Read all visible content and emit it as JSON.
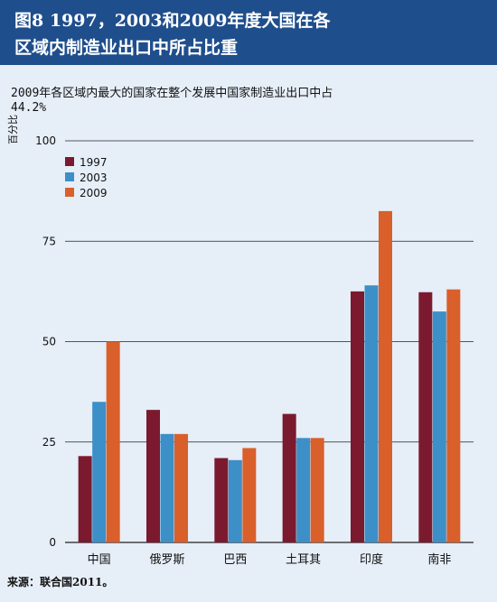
{
  "figure": {
    "title_line1": "图8  1997，2003和2009年度大国在各",
    "title_line2": "区域内制造业出口中所占比重",
    "subtitle_line1": "2009年各区域内最大的国家在整个发展中国家制造业出口中占",
    "subtitle_line2": "44.2%",
    "source": "来源：联合国2011。"
  },
  "chart_data": {
    "type": "bar",
    "ylabel": "百分比",
    "ylim": [
      0,
      100
    ],
    "yticks": [
      0,
      25,
      50,
      75,
      100
    ],
    "grid": true,
    "legend_position": "top-left",
    "categories": [
      "中国",
      "俄罗斯",
      "巴西",
      "土耳其",
      "印度",
      "南非"
    ],
    "series": [
      {
        "name": "1997",
        "color": "#7b1a2e",
        "values": [
          21.5,
          33,
          21,
          32,
          62.5,
          62.3
        ]
      },
      {
        "name": "2003",
        "color": "#3d8fc7",
        "values": [
          35,
          27,
          20.5,
          26,
          64,
          57.5
        ]
      },
      {
        "name": "2009",
        "color": "#d95f2b",
        "values": [
          50,
          27,
          23.5,
          26,
          82.5,
          63
        ]
      }
    ]
  }
}
